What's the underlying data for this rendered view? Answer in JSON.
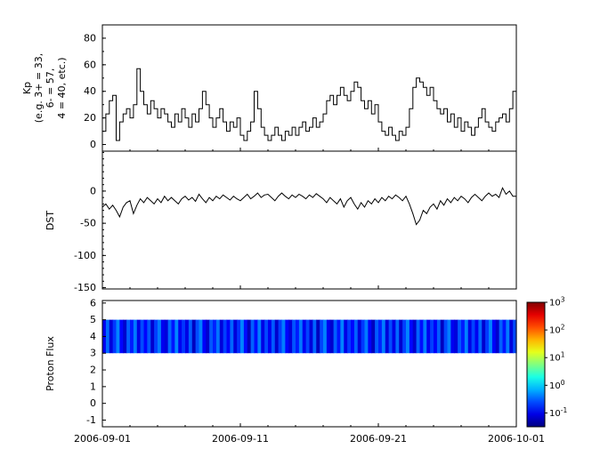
{
  "figure": {
    "background": "#ffffff"
  },
  "xaxis": {
    "tick_labels": [
      "2006-09-01",
      "2006-09-11",
      "2006-09-21",
      "2006-10-01"
    ],
    "tick_days": [
      0,
      10,
      20,
      30
    ],
    "minor_tick_every_days": 2,
    "range_days": [
      0,
      30
    ]
  },
  "chart_data": [
    {
      "type": "line",
      "name": "kp-index",
      "ylabel_lines": [
        "Kp",
        "(e.g. 3+ = 33,",
        "6- = 57,",
        "4 = 40, etc.)"
      ],
      "ylim": [
        -5,
        90
      ],
      "yticks": [
        0,
        20,
        40,
        60,
        80
      ],
      "minor_step": 10,
      "line_color": "#000000",
      "step": true,
      "x_days_step": 0.25,
      "values": [
        10,
        23,
        33,
        37,
        3,
        17,
        23,
        27,
        20,
        30,
        57,
        40,
        30,
        23,
        33,
        27,
        20,
        27,
        23,
        17,
        13,
        23,
        17,
        27,
        20,
        13,
        23,
        17,
        27,
        40,
        30,
        20,
        13,
        20,
        27,
        17,
        10,
        17,
        13,
        20,
        7,
        3,
        10,
        17,
        40,
        27,
        13,
        7,
        3,
        7,
        13,
        7,
        3,
        10,
        7,
        13,
        7,
        13,
        17,
        10,
        13,
        20,
        13,
        17,
        23,
        33,
        37,
        30,
        37,
        43,
        37,
        33,
        40,
        47,
        43,
        33,
        27,
        33,
        23,
        30,
        17,
        10,
        7,
        13,
        7,
        3,
        10,
        7,
        13,
        27,
        43,
        50,
        47,
        43,
        37,
        43,
        33,
        27,
        23,
        27,
        17,
        23,
        13,
        20,
        10,
        17,
        13,
        7,
        13,
        20,
        27,
        17,
        13,
        10,
        17,
        20,
        23,
        17,
        27,
        40
      ]
    },
    {
      "type": "line",
      "name": "dst-index",
      "ylabel": "DST",
      "ylim": [
        -152,
        62
      ],
      "yticks": [
        0,
        -50,
        -100,
        -150
      ],
      "minor_step": 10,
      "line_color": "#000000",
      "step": false,
      "x_days_step": 0.25,
      "values": [
        -25,
        -20,
        -28,
        -22,
        -30,
        -40,
        -25,
        -18,
        -15,
        -35,
        -22,
        -12,
        -18,
        -10,
        -15,
        -20,
        -12,
        -18,
        -8,
        -15,
        -10,
        -15,
        -20,
        -12,
        -8,
        -14,
        -10,
        -16,
        -5,
        -12,
        -18,
        -10,
        -15,
        -8,
        -12,
        -6,
        -10,
        -14,
        -8,
        -12,
        -15,
        -10,
        -5,
        -12,
        -8,
        -3,
        -10,
        -6,
        -5,
        -10,
        -15,
        -8,
        -3,
        -8,
        -12,
        -6,
        -10,
        -5,
        -8,
        -12,
        -6,
        -10,
        -4,
        -8,
        -12,
        -18,
        -10,
        -15,
        -20,
        -12,
        -25,
        -15,
        -10,
        -20,
        -28,
        -18,
        -25,
        -15,
        -20,
        -12,
        -18,
        -10,
        -15,
        -8,
        -12,
        -6,
        -10,
        -15,
        -8,
        -20,
        -35,
        -52,
        -45,
        -30,
        -35,
        -25,
        -20,
        -28,
        -15,
        -22,
        -12,
        -18,
        -10,
        -15,
        -8,
        -12,
        -18,
        -10,
        -5,
        -10,
        -15,
        -8,
        -3,
        -8,
        -5,
        -10,
        5,
        -5,
        0,
        -8
      ]
    },
    {
      "type": "heatmap",
      "name": "proton-flux",
      "ylabel": "Proton Flux",
      "ylim": [
        -1.4,
        6.15
      ],
      "yticks": [
        -1,
        0,
        1,
        2,
        3,
        4,
        5,
        6
      ],
      "band_y": [
        3,
        5
      ],
      "values": [
        0.1,
        0.35,
        0.08,
        0.2,
        0.45,
        0.12,
        0.07,
        0.3,
        0.15,
        0.4,
        0.09,
        0.25,
        0.12,
        0.28,
        0.07,
        0.22,
        0.4,
        0.1,
        0.08,
        0.33,
        0.14,
        0.45,
        0.1,
        0.2,
        0.09,
        0.3,
        0.06,
        0.25,
        0.42,
        0.11,
        0.07,
        0.28,
        0.16,
        0.38,
        0.08,
        0.22,
        0.11,
        0.33,
        0.08,
        0.19,
        0.44,
        0.13,
        0.06,
        0.31,
        0.13,
        0.42,
        0.09,
        0.24,
        0.1,
        0.29,
        0.07,
        0.21,
        0.41,
        0.12,
        0.08,
        0.27,
        0.15,
        0.39,
        0.1,
        0.23,
        0.08,
        0.32,
        0.06,
        0.23,
        0.43,
        0.1,
        0.07,
        0.3,
        0.14,
        0.44,
        0.09,
        0.21,
        0.12,
        0.31,
        0.08,
        0.2,
        0.4,
        0.11,
        0.06,
        0.29,
        0.16,
        0.41,
        0.08,
        0.25,
        0.09,
        0.34,
        0.07,
        0.22,
        0.45,
        0.12,
        0.07,
        0.32,
        0.13,
        0.4,
        0.1,
        0.22,
        0.11,
        0.3,
        0.06,
        0.24,
        0.42,
        0.1,
        0.08,
        0.28,
        0.15,
        0.43,
        0.09,
        0.23,
        0.1,
        0.33,
        0.07,
        0.21,
        0.44,
        0.11,
        0.07,
        0.31,
        0.14,
        0.41,
        0.08,
        0.24
      ],
      "colorbar": {
        "scale": "log10",
        "tick_labels": [
          "10^3",
          "10^2",
          "10^1",
          "10^0",
          "10^-1"
        ],
        "tick_exponents": [
          3,
          2,
          1,
          0,
          -1
        ],
        "exp_range": [
          -1.5,
          3
        ],
        "colormap": "jet"
      }
    }
  ]
}
